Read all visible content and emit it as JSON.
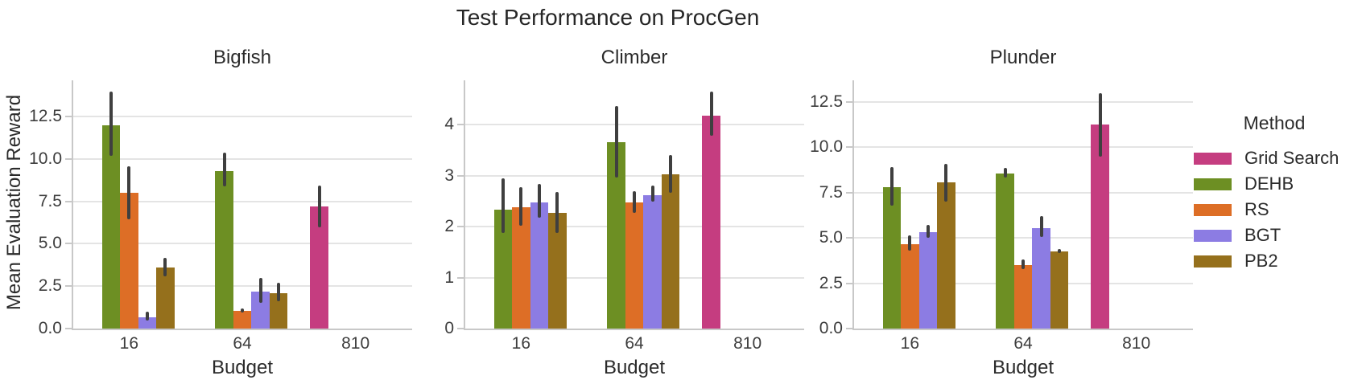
{
  "title": "Test Performance on ProcGen",
  "ylabel": "Mean Evaluation Reward",
  "legend": {
    "title": "Method",
    "entries": [
      {
        "label": "Grid Search",
        "color": "#c53d80"
      },
      {
        "label": "DEHB",
        "color": "#6d8f23"
      },
      {
        "label": "RS",
        "color": "#dd6e26"
      },
      {
        "label": "BGT",
        "color": "#8c7ce3"
      },
      {
        "label": "PB2",
        "color": "#95701c"
      }
    ]
  },
  "style": {
    "error_bar_color": "#3f3f3f",
    "grid_color": "#e4e4e4",
    "spine_color": "#c8c8c8",
    "text_color": "#2b2b2b",
    "tick_text_color": "#3d3d3d"
  },
  "chart_data": [
    {
      "type": "bar",
      "title": "Bigfish",
      "xlabel": "Budget",
      "categories": [
        "16",
        "64",
        "810"
      ],
      "ylim": [
        0,
        14.63
      ],
      "yticks": [
        0,
        2.5,
        5,
        7.5,
        10,
        12.5
      ],
      "ytick_labels": [
        "0.0",
        "2.5",
        "5.0",
        "7.5",
        "10.0",
        "12.5"
      ],
      "grid": true,
      "legend_position": "outside-right",
      "series": [
        {
          "name": "Grid Search",
          "color": "#c53d80",
          "values": [
            null,
            null,
            7.2
          ],
          "err_lo": [
            null,
            null,
            5.95
          ],
          "err_hi": [
            null,
            null,
            8.45
          ]
        },
        {
          "name": "DEHB",
          "color": "#6d8f23",
          "values": [
            12.0,
            9.3,
            null
          ],
          "err_lo": [
            10.2,
            8.4,
            null
          ],
          "err_hi": [
            13.95,
            10.35,
            null
          ]
        },
        {
          "name": "RS",
          "color": "#dd6e26",
          "values": [
            8.0,
            1.05,
            null
          ],
          "err_lo": [
            6.45,
            0.93,
            null
          ],
          "err_hi": [
            9.55,
            1.2,
            null
          ]
        },
        {
          "name": "BGT",
          "color": "#8c7ce3",
          "values": [
            0.65,
            2.2,
            null
          ],
          "err_lo": [
            0.45,
            1.5,
            null
          ],
          "err_hi": [
            1.0,
            3.0,
            null
          ]
        },
        {
          "name": "PB2",
          "color": "#95701c",
          "values": [
            3.6,
            2.1,
            null
          ],
          "err_lo": [
            3.1,
            1.6,
            null
          ],
          "err_hi": [
            4.15,
            2.7,
            null
          ]
        }
      ]
    },
    {
      "type": "bar",
      "title": "Climber",
      "xlabel": "Budget",
      "categories": [
        "16",
        "64",
        "810"
      ],
      "ylim": [
        0,
        4.87
      ],
      "yticks": [
        0,
        1,
        2,
        3,
        4
      ],
      "ytick_labels": [
        "0",
        "1",
        "2",
        "3",
        "4"
      ],
      "grid": true,
      "series": [
        {
          "name": "Grid Search",
          "color": "#c53d80",
          "values": [
            null,
            null,
            4.18
          ],
          "err_lo": [
            null,
            null,
            3.78
          ],
          "err_hi": [
            null,
            null,
            4.65
          ]
        },
        {
          "name": "DEHB",
          "color": "#6d8f23",
          "values": [
            2.33,
            3.66,
            null
          ],
          "err_lo": [
            1.88,
            2.96,
            null
          ],
          "err_hi": [
            2.95,
            4.37,
            null
          ]
        },
        {
          "name": "RS",
          "color": "#dd6e26",
          "values": [
            2.38,
            2.47,
            null
          ],
          "err_lo": [
            2.02,
            2.27,
            null
          ],
          "err_hi": [
            2.77,
            2.7,
            null
          ]
        },
        {
          "name": "BGT",
          "color": "#8c7ce3",
          "values": [
            2.48,
            2.62,
            null
          ],
          "err_lo": [
            2.17,
            2.49,
            null
          ],
          "err_hi": [
            2.83,
            2.8,
            null
          ]
        },
        {
          "name": "PB2",
          "color": "#95701c",
          "values": [
            2.27,
            3.03,
            null
          ],
          "err_lo": [
            1.88,
            2.67,
            null
          ],
          "err_hi": [
            2.68,
            3.4,
            null
          ]
        }
      ]
    },
    {
      "type": "bar",
      "title": "Plunder",
      "xlabel": "Budget",
      "categories": [
        "16",
        "64",
        "810"
      ],
      "ylim": [
        0,
        13.7
      ],
      "yticks": [
        0,
        2.5,
        5,
        7.5,
        10,
        12.5
      ],
      "ytick_labels": [
        "0.0",
        "2.5",
        "5.0",
        "7.5",
        "10.0",
        "12.5"
      ],
      "grid": true,
      "series": [
        {
          "name": "Grid Search",
          "color": "#c53d80",
          "values": [
            null,
            null,
            11.25
          ],
          "err_lo": [
            null,
            null,
            9.5
          ],
          "err_hi": [
            null,
            null,
            13.0
          ]
        },
        {
          "name": "DEHB",
          "color": "#6d8f23",
          "values": [
            7.8,
            8.55,
            null
          ],
          "err_lo": [
            6.8,
            8.35,
            null
          ],
          "err_hi": [
            8.9,
            8.85,
            null
          ]
        },
        {
          "name": "RS",
          "color": "#dd6e26",
          "values": [
            4.65,
            3.5,
            null
          ],
          "err_lo": [
            4.3,
            3.3,
            null
          ],
          "err_hi": [
            5.15,
            3.8,
            null
          ]
        },
        {
          "name": "BGT",
          "color": "#8c7ce3",
          "values": [
            5.3,
            5.55,
            null
          ],
          "err_lo": [
            5.0,
            5.05,
            null
          ],
          "err_hi": [
            5.7,
            6.2,
            null
          ]
        },
        {
          "name": "PB2",
          "color": "#95701c",
          "values": [
            8.05,
            4.25,
            null
          ],
          "err_lo": [
            7.0,
            4.15,
            null
          ],
          "err_hi": [
            9.1,
            4.4,
            null
          ]
        }
      ]
    }
  ]
}
